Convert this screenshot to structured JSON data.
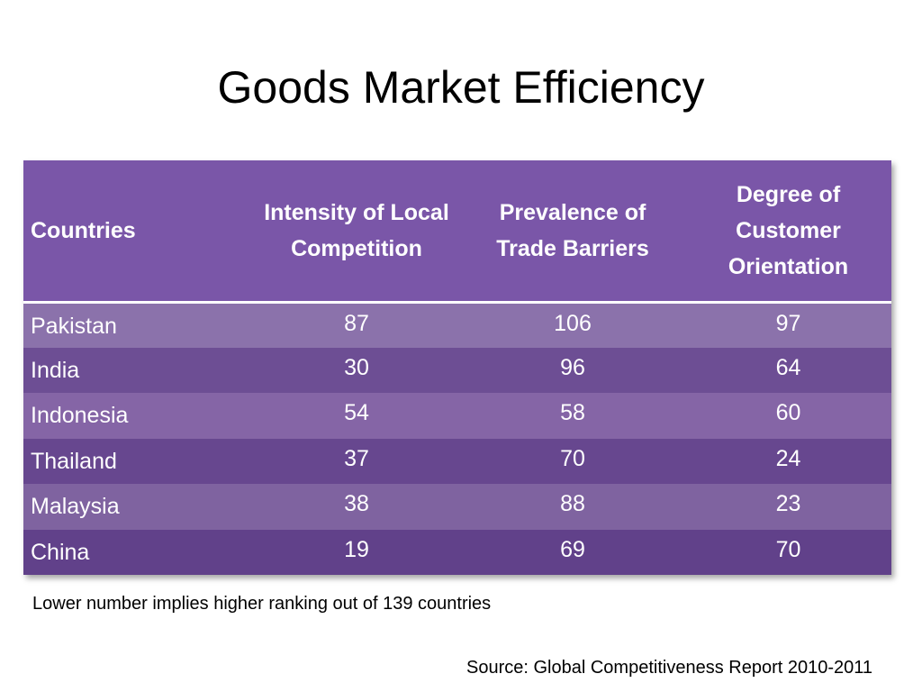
{
  "title": "Goods Market Efficiency",
  "table": {
    "headers": [
      "Countries",
      "Intensity of Local Competition",
      "Prevalence of Trade Barriers",
      "Degree of Customer Orientation"
    ],
    "rows": [
      {
        "country": "Pakistan",
        "competition": "87",
        "barriers": "106",
        "orientation": "97"
      },
      {
        "country": "India",
        "competition": "30",
        "barriers": "96",
        "orientation": "64"
      },
      {
        "country": "Indonesia",
        "competition": "54",
        "barriers": "58",
        "orientation": "60"
      },
      {
        "country": "Thailand",
        "competition": "37",
        "barriers": "70",
        "orientation": "24"
      },
      {
        "country": "Malaysia",
        "competition": "38",
        "barriers": "88",
        "orientation": "23"
      },
      {
        "country": "China",
        "competition": "19",
        "barriers": "69",
        "orientation": "70"
      }
    ]
  },
  "note": "Lower number implies higher ranking out of 139 countries",
  "source": "Source: Global Competitiveness Report 2010-2011",
  "colors": {
    "header_bg": "#7a56a8",
    "row_light": "#8b72ab",
    "row_dark": "#6d4e94"
  }
}
